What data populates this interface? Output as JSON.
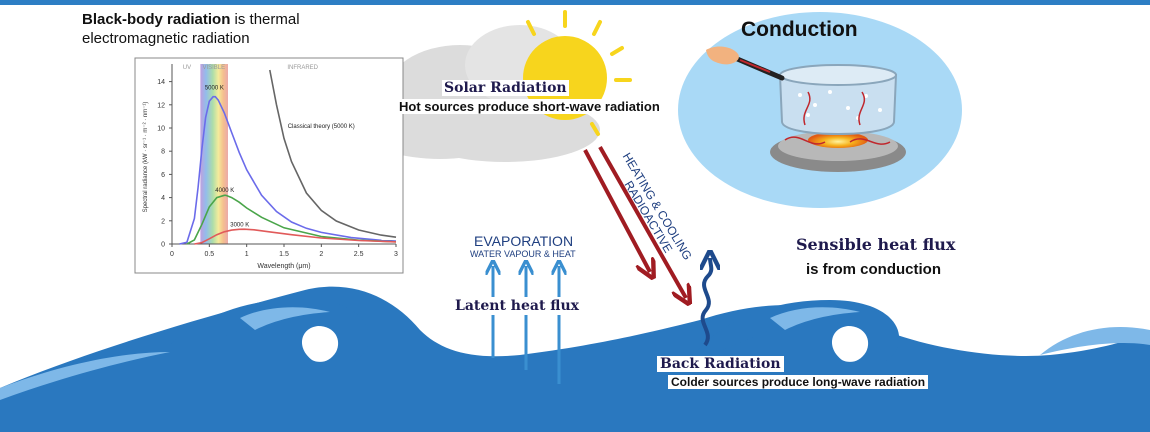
{
  "intro": {
    "bold": "Black-body radiation",
    "rest_line1": " is thermal",
    "line2": "electromagnetic radiation"
  },
  "solar": {
    "title": "Solar Radiation",
    "subtitle": "Hot sources produce short-wave radiation"
  },
  "conduction": {
    "title": "Conduction"
  },
  "radiative": {
    "line1": "RADIOACTIVE",
    "line2": "HEATING & COOLING"
  },
  "evaporation": {
    "title": "EVAPORATION",
    "subtitle": "WATER VAPOUR & HEAT"
  },
  "latent": {
    "label": "Latent heat flux"
  },
  "sensible": {
    "line1": "Sensible heat flux",
    "line2": "is from conduction"
  },
  "back_radiation": {
    "title": "Back Radiation",
    "subtitle": "Colder sources produce long-wave radiation"
  },
  "colors": {
    "top_bar": "#2d7ec4",
    "ocean": "#2a78bf",
    "wave_light": "#7eb8e8",
    "arrow_red": "#a01c22",
    "arrow_blue": "#1e4a8c",
    "evap_blue": "#3a8fd0",
    "sun": "#f7d51d",
    "pot_sky": "#a9d9f6",
    "navy_text": "#1f1a4d"
  },
  "chart_data": {
    "type": "line",
    "regions": [
      "UV",
      "VISIBLE",
      "INFRARED"
    ],
    "xlabel": "Wavelength (μm)",
    "ylabel": "Spectral radiance (kW · sr⁻¹ · m⁻² · nm⁻¹)",
    "xlim": [
      0,
      3
    ],
    "ylim": [
      0,
      15
    ],
    "x_ticks": [
      0,
      0.5,
      1,
      1.5,
      2,
      2.5,
      3
    ],
    "x_tick_labels": [
      "0",
      "0.5",
      "1",
      "1.5",
      "2",
      "2.5",
      "3"
    ],
    "y_ticks": [
      0,
      2,
      4,
      6,
      8,
      10,
      12,
      14
    ],
    "y_tick_labels": [
      "0",
      "2",
      "4",
      "6",
      "8",
      "10",
      "12",
      "14"
    ],
    "series": [
      {
        "name": "5000 K",
        "color": "#6b6bea",
        "x": [
          0.1,
          0.2,
          0.3,
          0.35,
          0.4,
          0.45,
          0.5,
          0.55,
          0.58,
          0.62,
          0.7,
          0.8,
          0.9,
          1.0,
          1.2,
          1.4,
          1.6,
          1.8,
          2.0,
          2.4,
          2.8,
          3.0
        ],
        "y": [
          0,
          0.15,
          2.2,
          4.9,
          8.2,
          10.9,
          12.3,
          12.7,
          12.7,
          12.4,
          11.3,
          9.6,
          7.9,
          6.4,
          4.2,
          2.8,
          1.9,
          1.35,
          1.0,
          0.55,
          0.32,
          0.26
        ]
      },
      {
        "name": "4000 K",
        "color": "#4aa54a",
        "x": [
          0.2,
          0.3,
          0.4,
          0.5,
          0.6,
          0.7,
          0.72,
          0.8,
          0.9,
          1.0,
          1.2,
          1.5,
          2.0,
          2.5,
          3.0
        ],
        "y": [
          0,
          0.35,
          1.7,
          3.2,
          4.0,
          4.2,
          4.2,
          4.0,
          3.6,
          3.1,
          2.3,
          1.4,
          0.65,
          0.33,
          0.19
        ]
      },
      {
        "name": "3000 K",
        "color": "#e15a5a",
        "x": [
          0.3,
          0.4,
          0.5,
          0.6,
          0.7,
          0.8,
          0.9,
          0.97,
          1.1,
          1.3,
          1.6,
          2.0,
          2.5,
          3.0
        ],
        "y": [
          0,
          0.12,
          0.45,
          0.8,
          1.05,
          1.2,
          1.27,
          1.28,
          1.22,
          1.05,
          0.8,
          0.52,
          0.3,
          0.18
        ]
      },
      {
        "name": "Classical theory (5000 K)",
        "color": "#666666",
        "x": [
          1.31,
          1.4,
          1.5,
          1.6,
          1.8,
          2.0,
          2.2,
          2.5,
          2.8,
          3.0
        ],
        "y": [
          15,
          12.0,
          9.1,
          7.1,
          4.4,
          2.9,
          1.98,
          1.21,
          0.77,
          0.59
        ]
      }
    ],
    "annotations": [
      "5000 K",
      "4000 K",
      "3000 K",
      "Classical theory (5000 K)"
    ]
  }
}
